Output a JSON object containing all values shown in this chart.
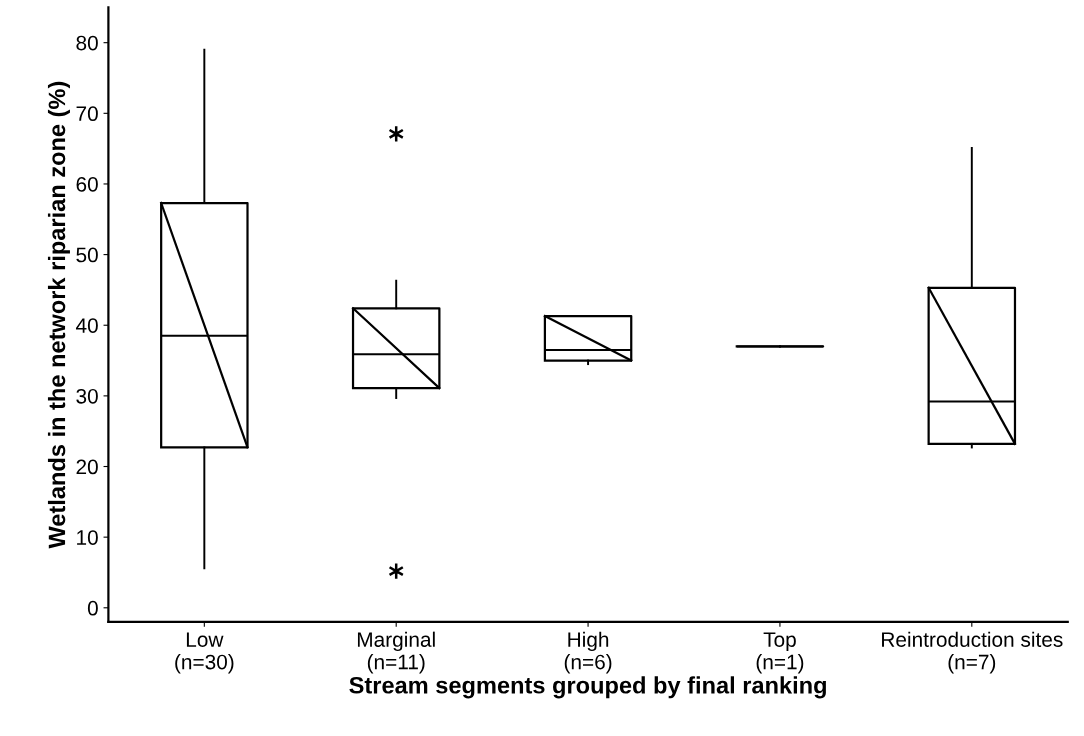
{
  "chart_data": {
    "type": "box",
    "xlabel": "Stream segments grouped by final ranking",
    "ylabel": "Wetlands in the network riparian zone (%)",
    "categories": [
      "Low\n(n=30)",
      "Marginal\n(n=11)",
      "High\n(n=6)",
      "Top\n(n=1)",
      "Reintroduction sites\n(n=7)"
    ],
    "boxes": [
      {
        "low": 5.6,
        "q1": 22.7,
        "median": 38.5,
        "q3": 57.3,
        "high": 79
      },
      {
        "low": 29.7,
        "q1": 31.1,
        "median": 35.9,
        "q3": 42.4,
        "high": 46.3,
        "outliers": [
          67.1,
          5.2
        ]
      },
      {
        "low": 34.5,
        "q1": 35.0,
        "median": 36.5,
        "q3": 41.3,
        "high": 41.3
      },
      {
        "low": 37.0,
        "q1": 37.0,
        "median": 37.0,
        "q3": 37.0,
        "high": 37.0
      },
      {
        "low": 22.7,
        "q1": 23.2,
        "median": 29.2,
        "q3": 45.3,
        "high": 65.1
      }
    ],
    "ylim": [
      -2,
      85
    ],
    "yticks": [
      0,
      10,
      20,
      30,
      40,
      50,
      60,
      70,
      80
    ],
    "grid": false
  }
}
